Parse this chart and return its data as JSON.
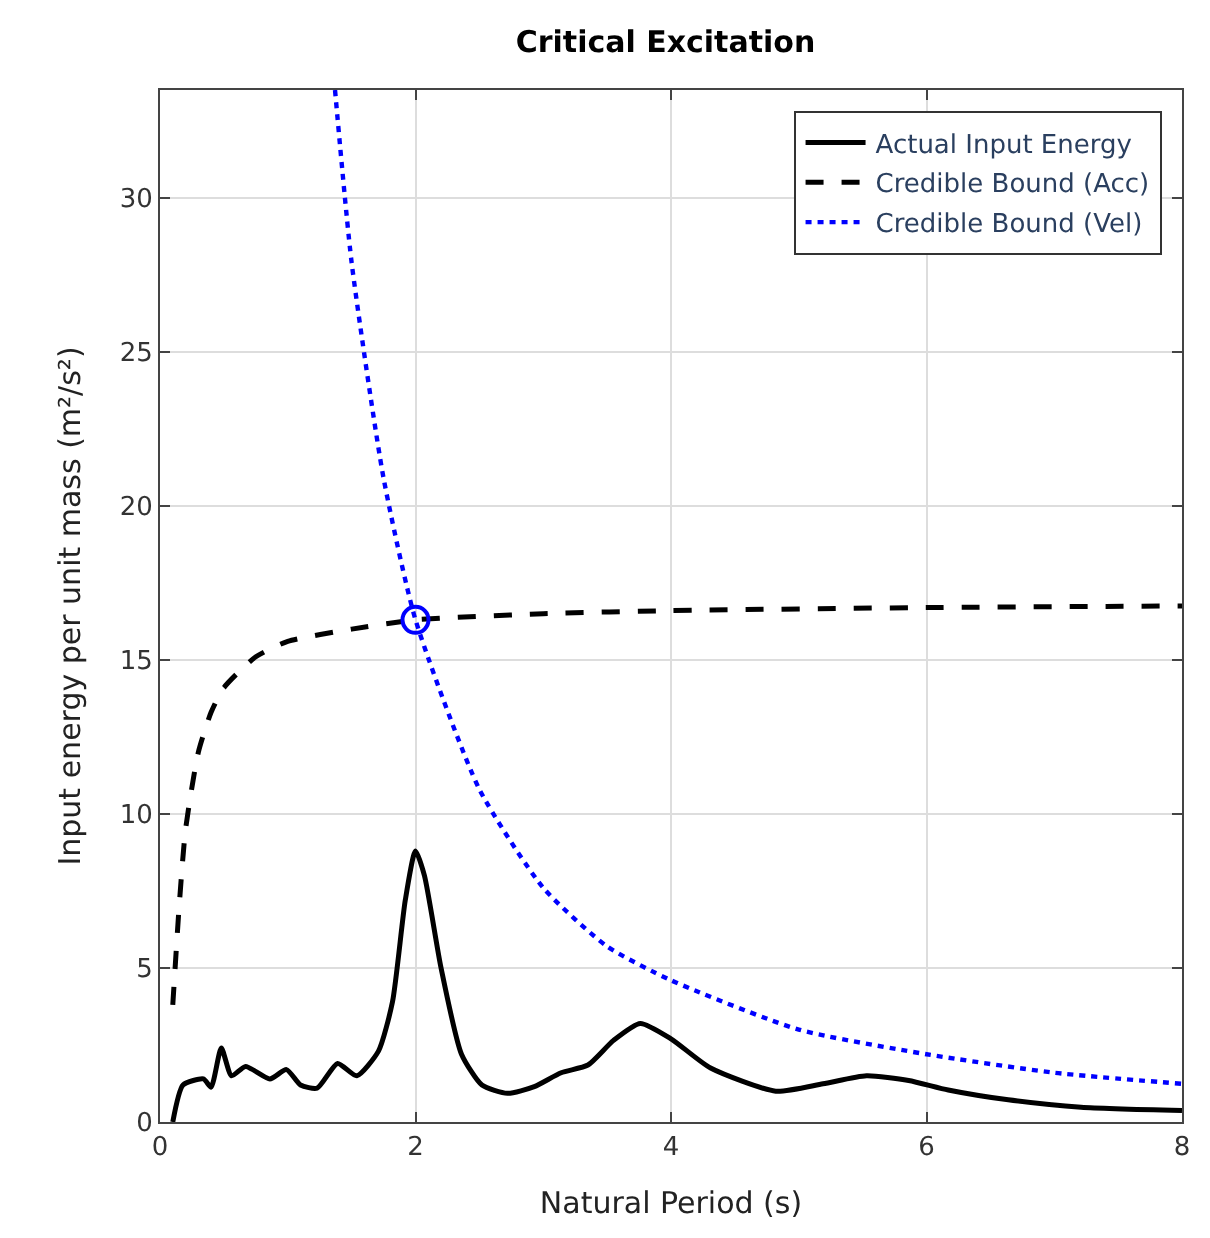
{
  "chart_data": {
    "type": "line",
    "title": "Critical Excitation",
    "xlabel": "Natural Period (s)",
    "ylabel": "Input energy per unit mass (m²/s²)",
    "xlim": [
      0,
      8
    ],
    "ylim": [
      0,
      33.5
    ],
    "xticks": [
      0,
      2,
      4,
      6,
      8
    ],
    "yticks": [
      0,
      5,
      10,
      15,
      20,
      25,
      30
    ],
    "grid": true,
    "legend": "top right",
    "series": [
      {
        "name": "Actual Input Energy",
        "color": "#000000",
        "line_style": "solid",
        "x": [
          0.1,
          0.18,
          0.34,
          0.4,
          0.48,
          0.56,
          0.67,
          0.86,
          0.99,
          1.1,
          1.23,
          1.39,
          1.54,
          1.71,
          1.82,
          1.92,
          2.0,
          2.07,
          2.2,
          2.36,
          2.52,
          2.72,
          2.93,
          3.14,
          3.35,
          3.55,
          3.76,
          4.0,
          4.31,
          4.82,
          5.19,
          5.53,
          5.86,
          6.17,
          6.64,
          7.21,
          8.0
        ],
        "values": [
          0,
          1.2,
          1.4,
          1.13,
          2.4,
          1.5,
          1.8,
          1.4,
          1.7,
          1.2,
          1.1,
          1.9,
          1.5,
          2.3,
          3.9,
          7.2,
          8.8,
          8.0,
          5.0,
          2.2,
          1.2,
          0.93,
          1.15,
          1.6,
          1.85,
          2.65,
          3.2,
          2.7,
          1.75,
          1.0,
          1.24,
          1.5,
          1.35,
          1.04,
          0.72,
          0.48,
          0.37
        ]
      },
      {
        "name": "Credible Bound (Acc)",
        "color": "#000000",
        "line_style": "dashed",
        "x": [
          0.1,
          0.15,
          0.2,
          0.3,
          0.4,
          0.5,
          0.75,
          1,
          1.5,
          2,
          3,
          4,
          6,
          8
        ],
        "values": [
          3.8,
          7,
          9.5,
          12,
          13.3,
          14.1,
          15.1,
          15.6,
          16.0,
          16.3,
          16.5,
          16.6,
          16.7,
          16.75
        ]
      },
      {
        "name": "Credible Bound (Vel)",
        "color": "#0000ff",
        "line_style": "dotted",
        "x": [
          1.37,
          1.5,
          1.75,
          2,
          2.5,
          3,
          3.5,
          4,
          5,
          6,
          7,
          8
        ],
        "values": [
          33.5,
          27.9,
          20.9,
          16.3,
          10.8,
          7.6,
          5.7,
          4.6,
          3.0,
          2.2,
          1.6,
          1.24
        ]
      },
      {
        "type": "scatter",
        "marker": "circle",
        "color": "#0000ff",
        "x": [
          2
        ],
        "values": [
          16.3
        ]
      }
    ]
  }
}
